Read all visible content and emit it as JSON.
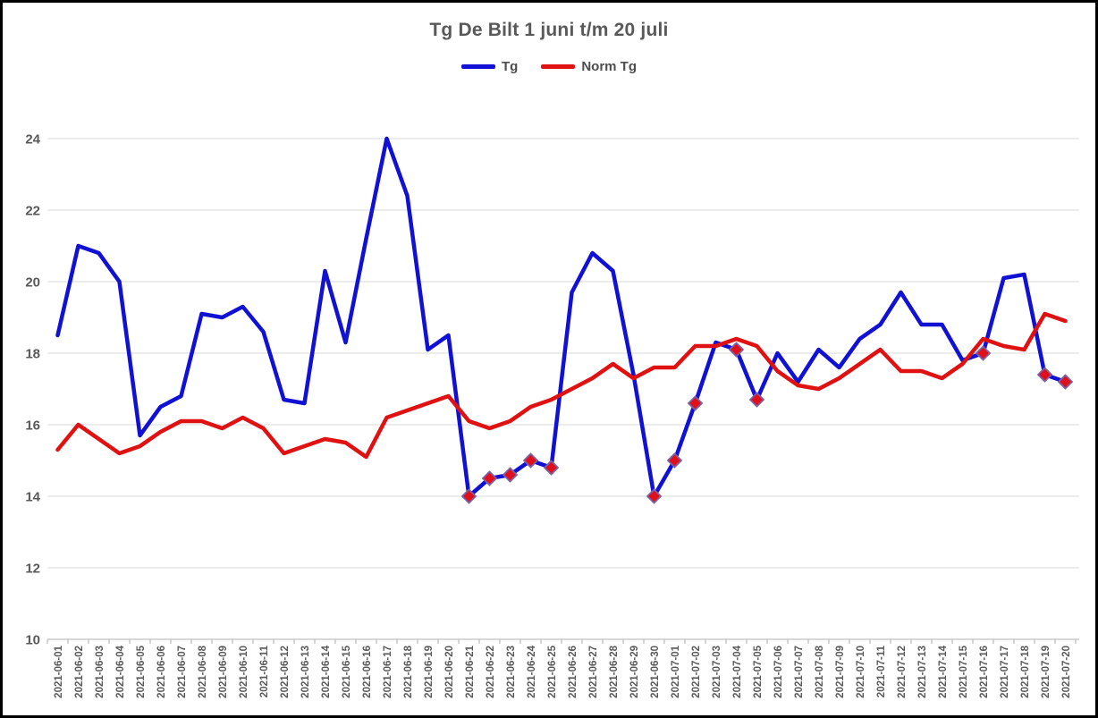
{
  "title": "Tg De Bilt 1 juni t/m 20 juli",
  "legend": {
    "items": [
      {
        "label": "Tg",
        "color": "#1111d6"
      },
      {
        "label": "Norm Tg",
        "color": "#e01111"
      }
    ]
  },
  "chart_data": {
    "type": "line",
    "title": "Tg De Bilt 1 juni t/m 20 juli",
    "xlabel": "",
    "ylabel": "",
    "ylim": [
      10,
      24
    ],
    "yticks": [
      10,
      12,
      14,
      16,
      18,
      20,
      22,
      24
    ],
    "grid": "horizontal",
    "legend_position": "top",
    "categories": [
      "2021-06-01",
      "2021-06-02",
      "2021-06-03",
      "2021-06-04",
      "2021-06-05",
      "2021-06-06",
      "2021-06-07",
      "2021-06-08",
      "2021-06-09",
      "2021-06-10",
      "2021-06-11",
      "2021-06-12",
      "2021-06-13",
      "2021-06-14",
      "2021-06-15",
      "2021-06-16",
      "2021-06-17",
      "2021-06-18",
      "2021-06-19",
      "2021-06-20",
      "2021-06-21",
      "2021-06-22",
      "2021-06-23",
      "2021-06-24",
      "2021-06-25",
      "2021-06-26",
      "2021-06-27",
      "2021-06-28",
      "2021-06-29",
      "2021-06-30",
      "2021-07-01",
      "2021-07-02",
      "2021-07-03",
      "2021-07-04",
      "2021-07-05",
      "2021-07-06",
      "2021-07-07",
      "2021-07-08",
      "2021-07-09",
      "2021-07-10",
      "2021-07-11",
      "2021-07-12",
      "2021-07-13",
      "2021-07-14",
      "2021-07-15",
      "2021-07-16",
      "2021-07-17",
      "2021-07-18",
      "2021-07-19",
      "2021-07-20"
    ],
    "series": [
      {
        "name": "Tg",
        "color": "#1111d6",
        "line_width": 4.5,
        "values": [
          18.5,
          21.0,
          20.8,
          20.0,
          15.7,
          16.5,
          16.8,
          19.1,
          19.0,
          19.3,
          18.6,
          16.7,
          16.6,
          20.3,
          18.3,
          21.2,
          24.0,
          22.4,
          18.1,
          18.5,
          14.0,
          14.5,
          14.6,
          15.0,
          14.8,
          19.7,
          20.8,
          20.3,
          17.4,
          14.0,
          15.0,
          16.6,
          18.3,
          18.1,
          16.7,
          18.0,
          17.2,
          18.1,
          17.6,
          18.4,
          18.8,
          19.7,
          18.8,
          18.8,
          17.8,
          18.0,
          20.1,
          20.2,
          17.4,
          17.2
        ],
        "marker_indices": [
          20,
          21,
          22,
          23,
          24,
          29,
          30,
          31,
          33,
          34,
          45,
          48,
          49
        ],
        "marker": {
          "shape": "diamond",
          "fill": "#e0101a",
          "stroke": "#7d5fa8",
          "size": 7.5
        },
        "marker_meaning": "days where Tg is below Norm Tg"
      },
      {
        "name": "Norm Tg",
        "color": "#e01111",
        "line_width": 4.5,
        "values": [
          15.3,
          16.0,
          15.6,
          15.2,
          15.4,
          15.8,
          16.1,
          16.1,
          15.9,
          16.2,
          15.9,
          15.2,
          15.4,
          15.6,
          15.5,
          15.1,
          16.2,
          16.4,
          16.6,
          16.8,
          16.1,
          15.9,
          16.1,
          16.5,
          16.7,
          17.0,
          17.3,
          17.7,
          17.3,
          17.6,
          17.6,
          18.2,
          18.2,
          18.4,
          18.2,
          17.5,
          17.1,
          17.0,
          17.3,
          17.7,
          18.1,
          17.5,
          17.5,
          17.3,
          17.7,
          18.4,
          18.2,
          18.1,
          19.1,
          18.9
        ],
        "marker_indices": [],
        "marker": null
      }
    ],
    "colors": {
      "text": "#595959",
      "gridline": "#d9d9d9",
      "axis_line": "#bfbfbf",
      "background": "#ffffff",
      "border": "#000000"
    }
  }
}
